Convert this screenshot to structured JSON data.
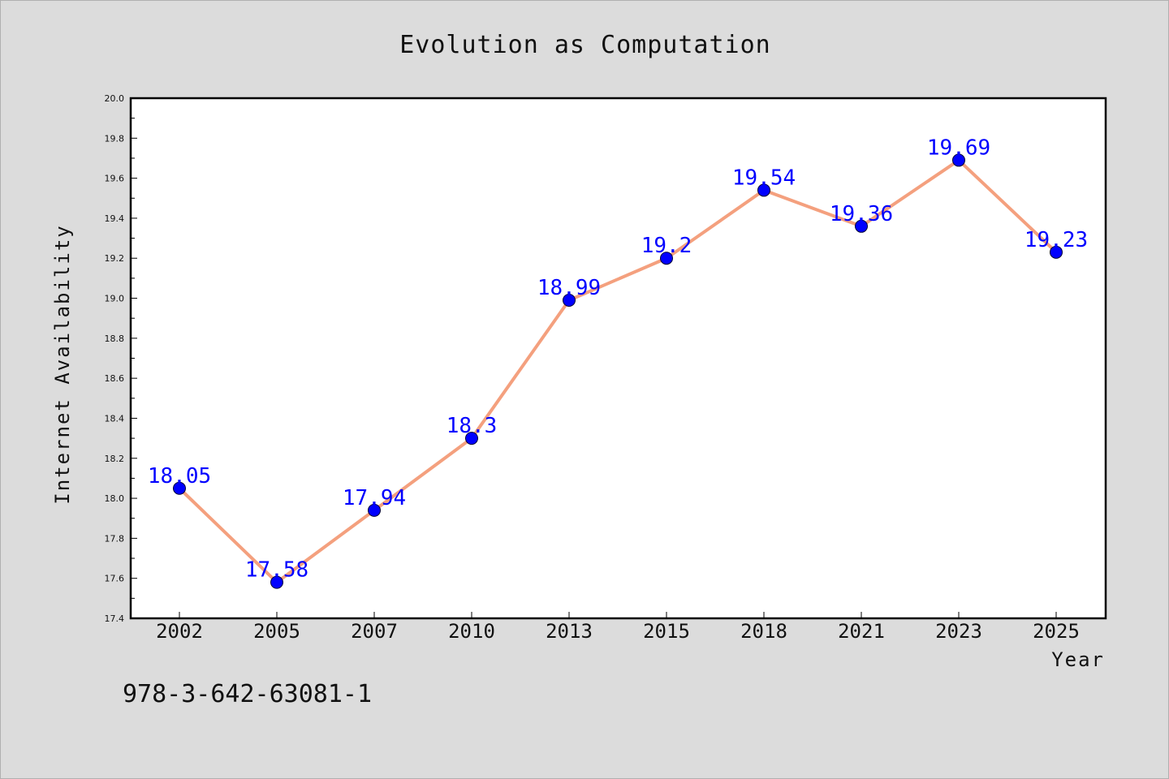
{
  "colors": {
    "background": "#dcdcdc",
    "plot_background": "#ffffff",
    "line": "#f4a07e",
    "marker": "#0000ff",
    "data_label": "#0000ff",
    "axis": "#000000"
  },
  "footer": {
    "isbn": "978-3-642-63081-1"
  },
  "chart_data": {
    "type": "line",
    "title": "Evolution as Computation",
    "xlabel": "Year",
    "ylabel": "Internet Availability",
    "categories": [
      "2002",
      "2005",
      "2007",
      "2010",
      "2013",
      "2015",
      "2018",
      "2021",
      "2023",
      "2025"
    ],
    "series": [
      {
        "values": [
          18.05,
          17.58,
          17.94,
          18.3,
          18.99,
          19.2,
          19.54,
          19.36,
          19.69,
          19.23
        ],
        "data_labels": [
          "18.05",
          "17.58",
          "17.94",
          "18.3",
          "18.99",
          "19.2",
          "19.54",
          "19.36",
          "19.69",
          "19.23"
        ]
      }
    ],
    "ylim": [
      17.4,
      20.0
    ],
    "yticks": [
      "17.4",
      "17.6",
      "17.8",
      "18.0",
      "18.2",
      "18.4",
      "18.6",
      "18.8",
      "19.0",
      "19.2",
      "19.4",
      "19.6",
      "19.8",
      "20.0"
    ],
    "grid": false,
    "legend": "none",
    "marker": "circle"
  }
}
